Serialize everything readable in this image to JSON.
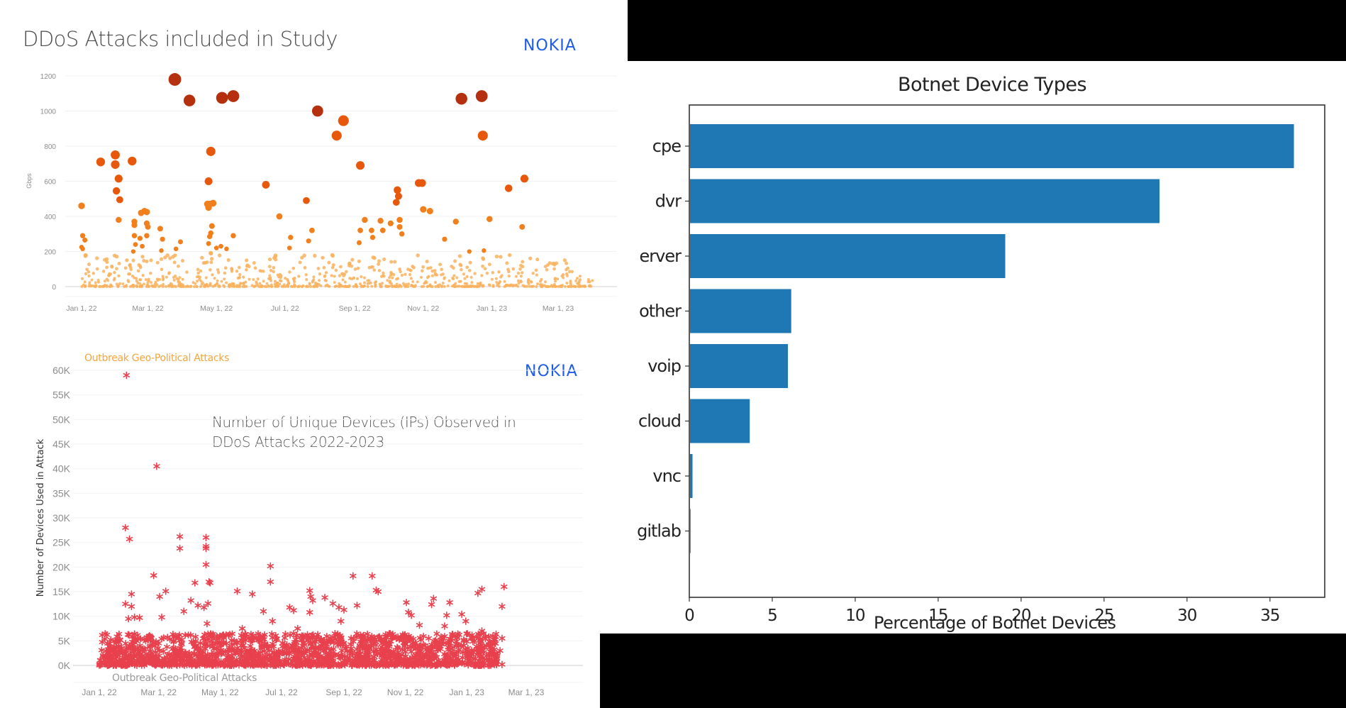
{
  "chart_data": [
    {
      "id": "ddos-attacks",
      "type": "scatter",
      "title": "DDoS Attacks included in Study",
      "brand": "NOKIA",
      "xlabel": "",
      "ylabel": "Gbps",
      "x_unit": "days since Jan 1, 2022",
      "ylim": [
        0,
        1200
      ],
      "yticks": [
        0,
        200,
        400,
        600,
        800,
        1000,
        1200
      ],
      "ytick_labels": [
        "0",
        "200",
        "400",
        "600",
        "800",
        "1000",
        "1200"
      ],
      "xticks": [
        0,
        59,
        120,
        181,
        243,
        304,
        365,
        424
      ],
      "xtick_labels": [
        "Jan 1, 22",
        "Mar 1, 22",
        "May 1, 22",
        "Jul 1, 22",
        "Sep 1, 22",
        "Nov 1, 22",
        "Jan 1, 23",
        "Mar 1, 23"
      ],
      "grid": true,
      "color_scale": {
        "low": "#f9b15e",
        "mid": "#f07f1c",
        "high": "#e8580c",
        "max": "#b5300f"
      },
      "points": [
        [
          0,
          460
        ],
        [
          1,
          290
        ],
        [
          3,
          265
        ],
        [
          0,
          225
        ],
        [
          1,
          215
        ],
        [
          17,
          710
        ],
        [
          30,
          750
        ],
        [
          30,
          695
        ],
        [
          33,
          615
        ],
        [
          31,
          545
        ],
        [
          34,
          495
        ],
        [
          33,
          380
        ],
        [
          45,
          715
        ],
        [
          47,
          370
        ],
        [
          47,
          350
        ],
        [
          47,
          290
        ],
        [
          48,
          240
        ],
        [
          46,
          200
        ],
        [
          53,
          420
        ],
        [
          56,
          430
        ],
        [
          58,
          425
        ],
        [
          52,
          275
        ],
        [
          54,
          230
        ],
        [
          58,
          360
        ],
        [
          59,
          340
        ],
        [
          58,
          290
        ],
        [
          70,
          330
        ],
        [
          72,
          270
        ],
        [
          71,
          205
        ],
        [
          84,
          215
        ],
        [
          88,
          255
        ],
        [
          83,
          1180
        ],
        [
          96,
          1060
        ],
        [
          113,
          600
        ],
        [
          115,
          770
        ],
        [
          112,
          470
        ],
        [
          114,
          470
        ],
        [
          117,
          475
        ],
        [
          113,
          450
        ],
        [
          116,
          345
        ],
        [
          115,
          305
        ],
        [
          114,
          285
        ],
        [
          113,
          245
        ],
        [
          115,
          190
        ],
        [
          120,
          220
        ],
        [
          124,
          230
        ],
        [
          129,
          215
        ],
        [
          125,
          1075
        ],
        [
          135,
          1085
        ],
        [
          135,
          290
        ],
        [
          164,
          580
        ],
        [
          176,
          400
        ],
        [
          186,
          280
        ],
        [
          185,
          220
        ],
        [
          200,
          490
        ],
        [
          202,
          260
        ],
        [
          205,
          320
        ],
        [
          210,
          1000
        ],
        [
          227,
          860
        ],
        [
          233,
          945
        ],
        [
          248,
          690
        ],
        [
          252,
          380
        ],
        [
          248,
          320
        ],
        [
          247,
          250
        ],
        [
          258,
          320
        ],
        [
          259,
          280
        ],
        [
          266,
          375
        ],
        [
          268,
          320
        ],
        [
          275,
          360
        ],
        [
          281,
          550
        ],
        [
          282,
          515
        ],
        [
          280,
          480
        ],
        [
          283,
          380
        ],
        [
          283,
          340
        ],
        [
          285,
          300
        ],
        [
          300,
          590
        ],
        [
          303,
          590
        ],
        [
          304,
          440
        ],
        [
          310,
          430
        ],
        [
          323,
          270
        ],
        [
          333,
          370
        ],
        [
          338,
          1070
        ],
        [
          345,
          200
        ],
        [
          356,
          1085
        ],
        [
          357,
          860
        ],
        [
          363,
          385
        ],
        [
          358,
          205
        ],
        [
          380,
          560
        ],
        [
          394,
          615
        ],
        [
          392,
          340
        ]
      ],
      "low_cloud": {
        "count": 900,
        "max_value": 180,
        "x_range": [
          0,
          455
        ],
        "seed": 7
      }
    },
    {
      "id": "unique-devices",
      "type": "scatter",
      "title": "Number of Unique Devices (IPs) Observed in DDoS Attacks 2022-2023",
      "title_lines": [
        "Number of Unique Devices (IPs) Observed in",
        "DDoS Attacks 2022-2023"
      ],
      "brand": "NOKIA",
      "annotations": [
        {
          "text": "Outbreak Geo-Political Attacks",
          "color": "#f5a53c",
          "position": "top-left"
        },
        {
          "text": "Outbreak Geo-Political Attacks",
          "color": "#9a9a9a",
          "position": "bottom-left"
        }
      ],
      "xlabel": "",
      "ylabel": "Number of Devices Used in Attack",
      "x_unit": "days since Jan 1, 2022",
      "ylim": [
        0,
        60000
      ],
      "yticks": [
        0,
        5000,
        10000,
        15000,
        20000,
        25000,
        30000,
        35000,
        40000,
        45000,
        50000,
        55000,
        60000
      ],
      "ytick_labels": [
        "0K",
        "5K",
        "10K",
        "15K",
        "20K",
        "25K",
        "30K",
        "35K",
        "40K",
        "45K",
        "50K",
        "55K",
        "60K"
      ],
      "xticks": [
        0,
        59,
        120,
        181,
        243,
        304,
        365,
        424
      ],
      "xtick_labels": [
        "Jan 1, 22",
        "Mar 1, 22",
        "May 1, 22",
        "Jul 1, 22",
        "Sep 1, 22",
        "Nov 1, 22",
        "Jan 1, 23",
        "Mar 1, 23"
      ],
      "grid": true,
      "marker_color": "#e8404d",
      "points": [
        [
          27,
          59000
        ],
        [
          57,
          40500
        ],
        [
          26,
          28000
        ],
        [
          30,
          25700
        ],
        [
          26,
          12500
        ],
        [
          32,
          14500
        ],
        [
          32,
          12000
        ],
        [
          29,
          9500
        ],
        [
          35,
          9800
        ],
        [
          40,
          9700
        ],
        [
          54,
          18300
        ],
        [
          60,
          14000
        ],
        [
          66,
          15100
        ],
        [
          62,
          9800
        ],
        [
          80,
          26200
        ],
        [
          80,
          23800
        ],
        [
          84,
          11000
        ],
        [
          91,
          13200
        ],
        [
          95,
          16800
        ],
        [
          98,
          12200
        ],
        [
          104,
          11800
        ],
        [
          107,
          8500
        ],
        [
          106,
          26000
        ],
        [
          106,
          24200
        ],
        [
          106,
          23800
        ],
        [
          106,
          20500
        ],
        [
          109,
          17000
        ],
        [
          110,
          16800
        ],
        [
          108,
          12600
        ],
        [
          137,
          15100
        ],
        [
          142,
          7500
        ],
        [
          152,
          14500
        ],
        [
          163,
          11000
        ],
        [
          170,
          17000
        ],
        [
          170,
          20200
        ],
        [
          172,
          9000
        ],
        [
          189,
          11800
        ],
        [
          193,
          11200
        ],
        [
          197,
          7500
        ],
        [
          209,
          15200
        ],
        [
          210,
          14000
        ],
        [
          212,
          13200
        ],
        [
          209,
          10800
        ],
        [
          224,
          13800
        ],
        [
          232,
          12600
        ],
        [
          238,
          11800
        ],
        [
          240,
          9000
        ],
        [
          243,
          11300
        ],
        [
          256,
          12200
        ],
        [
          252,
          18200
        ],
        [
          271,
          18200
        ],
        [
          275,
          15300
        ],
        [
          277,
          15000
        ],
        [
          305,
          12800
        ],
        [
          307,
          10800
        ],
        [
          310,
          10200
        ],
        [
          318,
          8200
        ],
        [
          330,
          12400
        ],
        [
          332,
          13600
        ],
        [
          343,
          8000
        ],
        [
          345,
          10200
        ],
        [
          348,
          12800
        ],
        [
          360,
          10400
        ],
        [
          364,
          9000
        ],
        [
          376,
          14700
        ],
        [
          380,
          15500
        ],
        [
          380,
          7000
        ],
        [
          402,
          16000
        ],
        [
          400,
          12000
        ],
        [
          400,
          5500
        ],
        [
          398,
          3000
        ],
        [
          400,
          200
        ]
      ],
      "low_cloud": {
        "count": 1600,
        "max_value": 6500,
        "x_range": [
          0,
          395
        ],
        "seed": 11
      }
    },
    {
      "id": "botnet-device-types",
      "type": "bar",
      "orientation": "horizontal",
      "title": "Botnet Device Types",
      "xlabel": "Percentage of Botnet Devices",
      "ylabel": "",
      "categories": [
        "cpe",
        "dvr",
        "server",
        "other",
        "voip",
        "cloud",
        "vnc",
        "gitlab"
      ],
      "category_labels_visible": [
        "cpe",
        "dvr",
        "erver",
        "other",
        "voip",
        "cloud",
        "vnc",
        "gitlab"
      ],
      "values": [
        36.4,
        28.3,
        19.0,
        6.1,
        5.9,
        3.6,
        0.15,
        0.02
      ],
      "xlim": [
        0,
        38.3
      ],
      "xticks": [
        0,
        5,
        10,
        15,
        20,
        25,
        30,
        35
      ],
      "xtick_labels": [
        "0",
        "5",
        "10",
        "15",
        "20",
        "25",
        "30",
        "35"
      ],
      "grid": false,
      "bar_color": "#1f77b4"
    }
  ]
}
